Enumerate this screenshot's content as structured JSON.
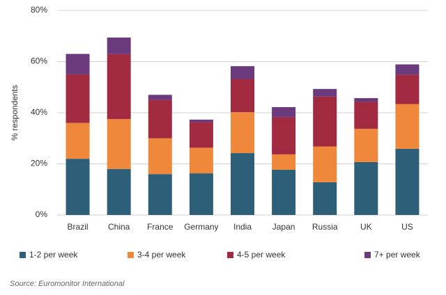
{
  "chart_data": {
    "type": "stacked-bar",
    "y_label": "% respondents",
    "source": "Source: Euromonitor International",
    "categories": [
      "Brazil",
      "China",
      "France",
      "Germany",
      "India",
      "Japan",
      "Russia",
      "UK",
      "US"
    ],
    "series": [
      {
        "name": "1-2 per week",
        "color": "#2e5f79",
        "values": [
          22,
          18,
          16,
          16.3,
          24.2,
          17.7,
          12.8,
          20.7,
          25.9
        ]
      },
      {
        "name": "3-4 per week",
        "color": "#ef883a",
        "values": [
          14,
          19.5,
          14,
          10,
          16,
          6,
          14,
          13,
          17.5
        ]
      },
      {
        "name": "4-5 per week",
        "color": "#a12a40",
        "values": [
          19,
          25.4,
          15,
          10,
          13,
          14.5,
          19.5,
          10.5,
          11.5
        ]
      },
      {
        "name": "7+ per week",
        "color": "#6a3a7c",
        "values": [
          8,
          6.5,
          2,
          1,
          5,
          4,
          3,
          1.5,
          4
        ]
      }
    ],
    "ylim": [
      0,
      80
    ],
    "yticks": [
      {
        "value": 0,
        "label": "0%"
      },
      {
        "value": 20,
        "label": "20%"
      },
      {
        "value": 40,
        "label": "40%"
      },
      {
        "value": 60,
        "label": "60%"
      },
      {
        "value": 80,
        "label": "80%"
      }
    ],
    "grid": true
  }
}
